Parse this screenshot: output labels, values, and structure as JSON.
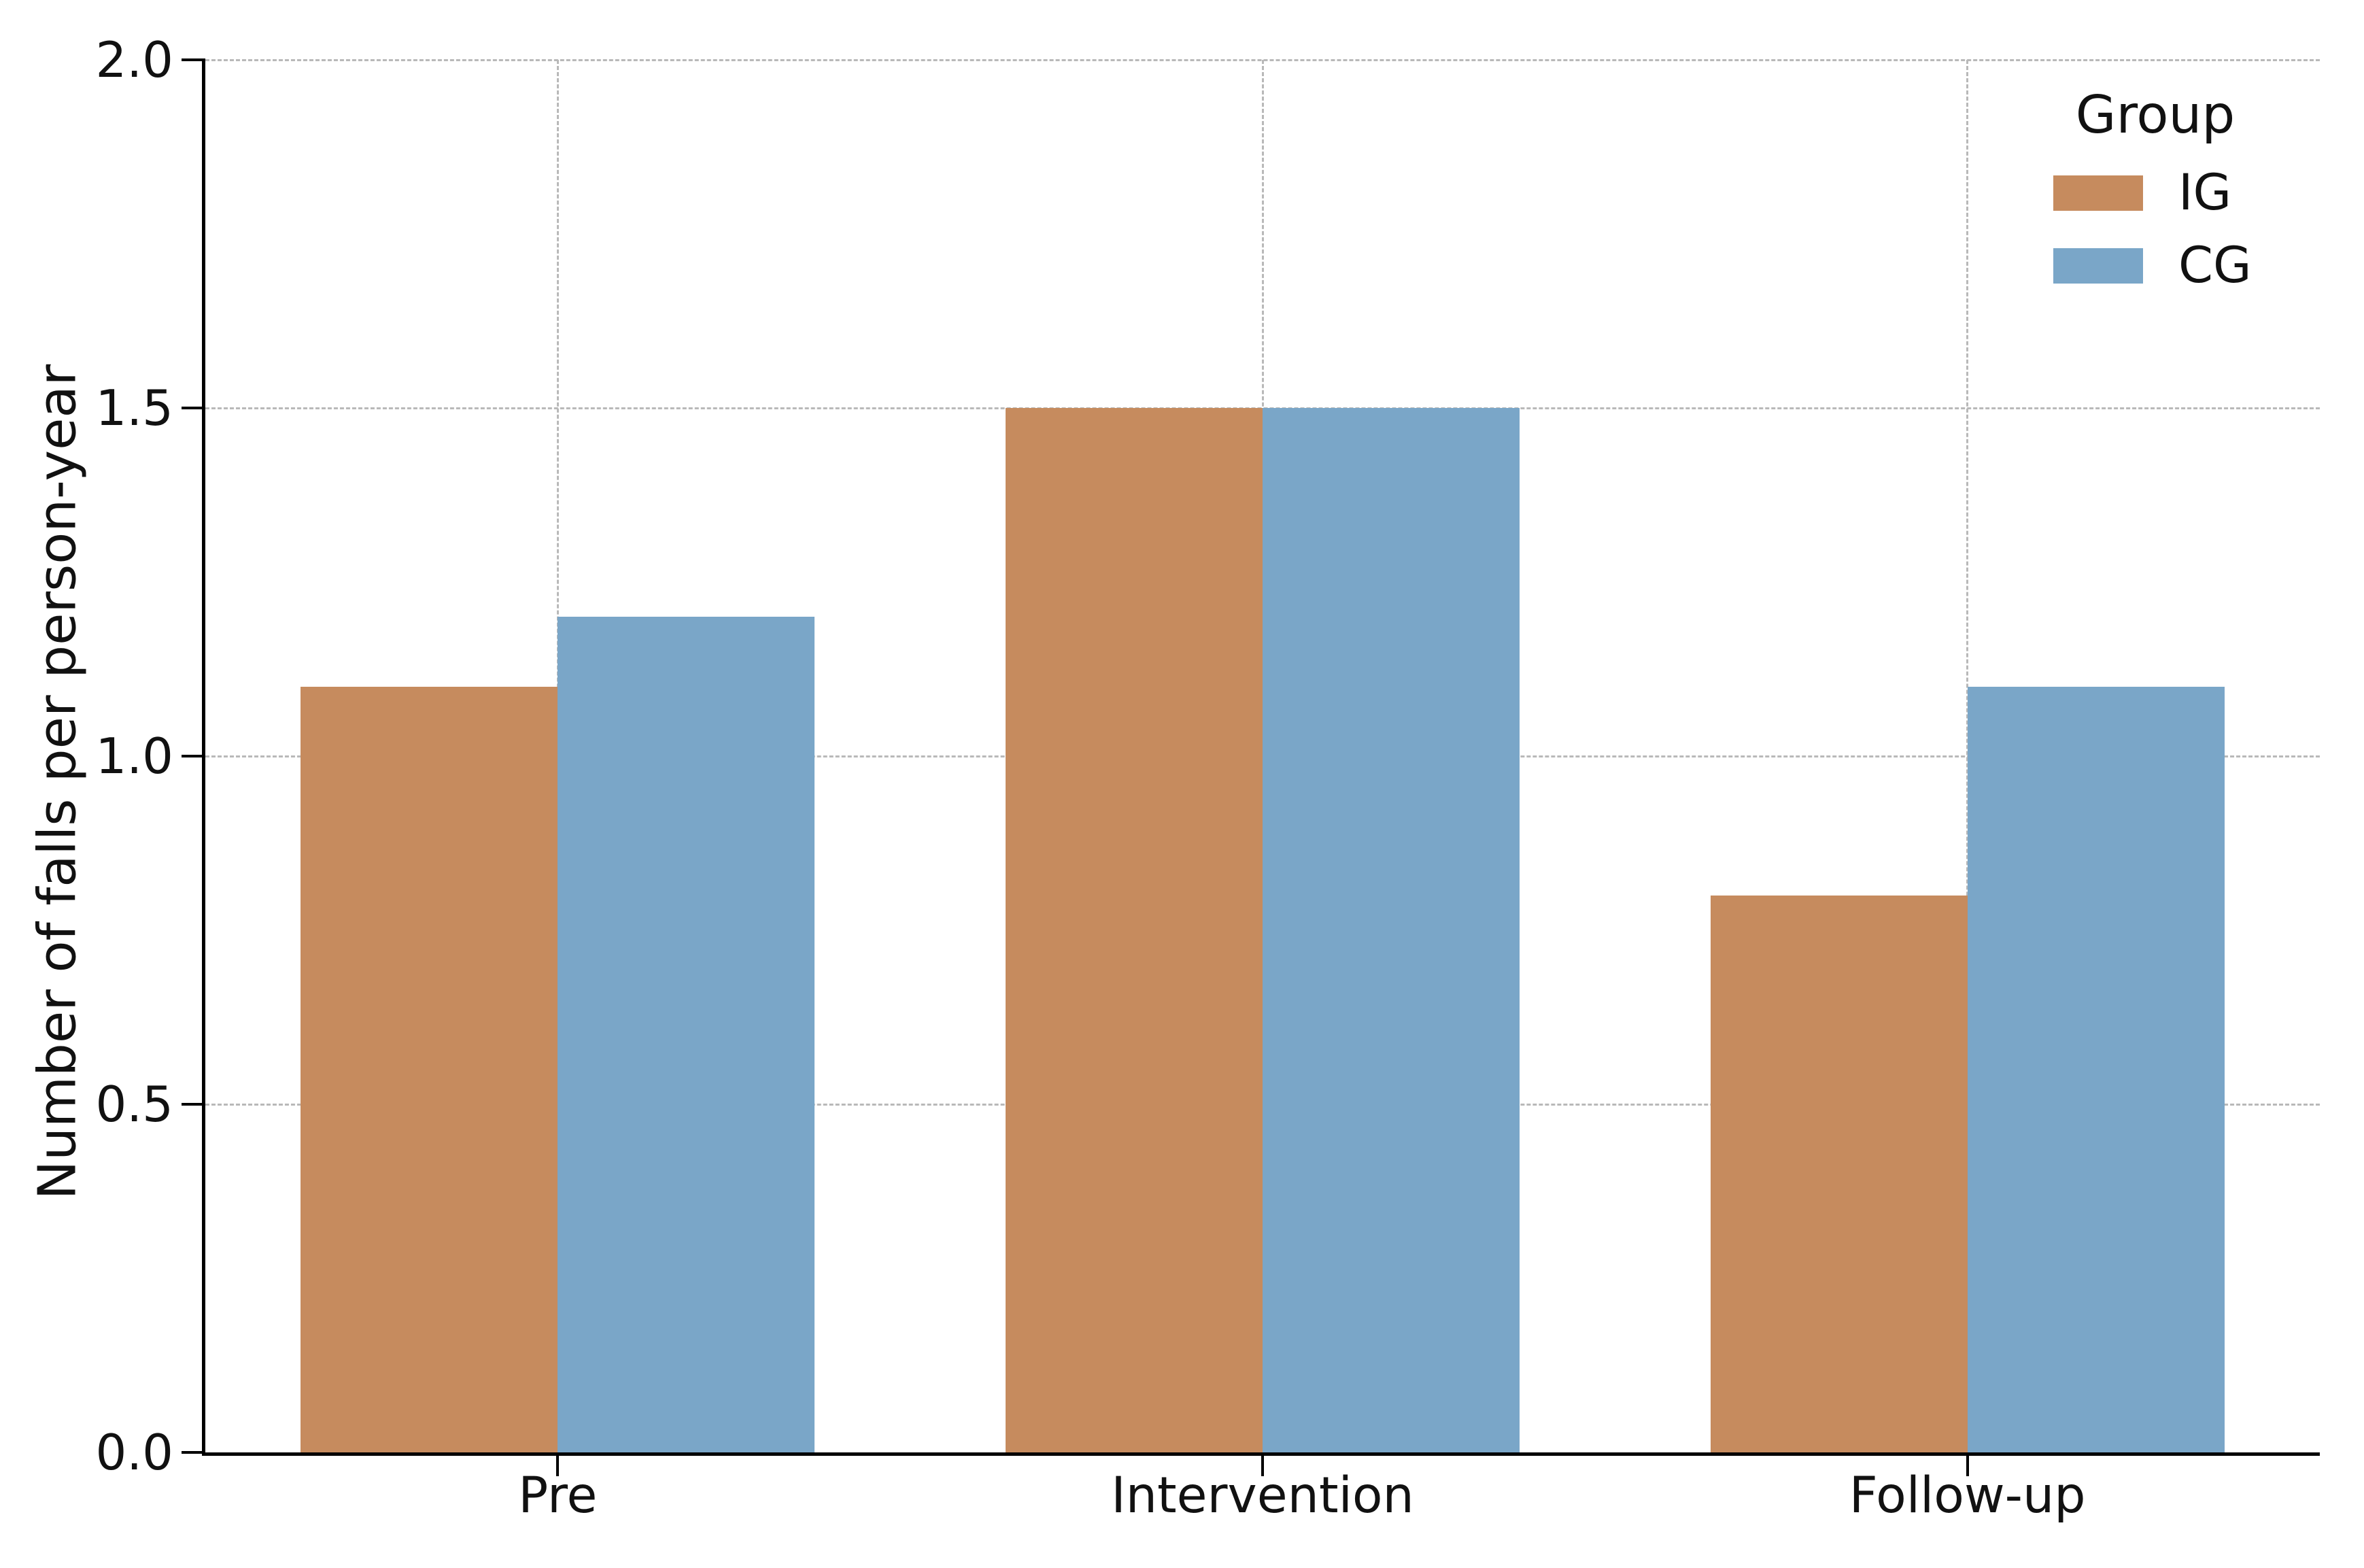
{
  "chart_data": {
    "type": "bar",
    "title": "",
    "categories": [
      "Pre",
      "Intervention",
      "Follow-up"
    ],
    "series": [
      {
        "name": "IG",
        "color": "#C68B5E",
        "values": [
          1.1,
          1.5,
          0.8
        ]
      },
      {
        "name": "CG",
        "color": "#7AA6C8",
        "values": [
          1.2,
          1.5,
          1.1
        ]
      }
    ],
    "xlabel": "",
    "ylabel": "Number of falls per person-year",
    "ylim": [
      0,
      2
    ],
    "yticks": [
      0.0,
      0.5,
      1.0,
      1.5,
      2.0
    ],
    "ytick_labels": [
      "0.0",
      "0.5",
      "1.0",
      "1.5",
      "2.0"
    ],
    "grid": {
      "style": "dashed",
      "color": "#b9b9b9",
      "horizontal_at": [
        0.5,
        1.0,
        1.5,
        2.0
      ],
      "vertical_at_category_centers": true,
      "axisbelow": true
    },
    "legend": {
      "title": "Group",
      "position": "upper right",
      "frame": false,
      "entries": [
        "IG",
        "CG"
      ]
    },
    "spines": {
      "left": true,
      "bottom": true,
      "top": false,
      "right": false
    }
  }
}
